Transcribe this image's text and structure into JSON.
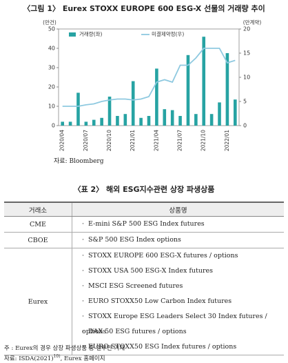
{
  "chart_data": {
    "type": "combo",
    "title": "〈그림 1〉 Eurex STOXX EUROPE 600 ESG-X 선물의 거래량 추이",
    "y_label": "(만건)",
    "y2_label": "(만계약)",
    "categories": [
      "2020/04",
      null,
      null,
      "2020/07",
      null,
      null,
      "2020/10",
      null,
      null,
      "2021/01",
      null,
      null,
      "2021/04",
      null,
      null,
      "2021/07",
      null,
      null,
      "2021/10",
      null,
      null,
      "2022/01",
      null
    ],
    "series": [
      {
        "name": "거래량(좌)",
        "type": "bar",
        "color": "#27a3a3",
        "values": [
          2,
          2,
          17,
          2,
          3,
          4,
          15,
          5,
          6,
          23,
          4,
          5,
          29.5,
          8.5,
          8,
          5,
          36.5,
          6,
          46,
          6,
          12,
          37.5,
          13.5
        ]
      },
      {
        "name": "미결제약정(우)",
        "type": "line",
        "axis": "y2",
        "color": "#8ec9e0",
        "values": [
          4,
          4,
          4,
          4.3,
          4.5,
          5,
          5.3,
          5.5,
          5.5,
          5.3,
          5.5,
          6,
          9,
          9.5,
          9,
          12.5,
          12.5,
          14,
          16,
          16,
          16,
          13,
          13.5
        ]
      }
    ],
    "ylim": [
      0,
      50
    ],
    "yticks": [
      0,
      10,
      20,
      30,
      40,
      50
    ],
    "y2lim": [
      0,
      20
    ],
    "y2ticks": [
      0,
      5,
      10,
      15,
      20
    ]
  },
  "source": "자료: Bloomberg",
  "table": {
    "title": "〈표 2〉 해외 ESG지수관련 상장 파생상품",
    "header": [
      "거래소",
      "상품명"
    ],
    "rows": [
      {
        "exchange": "CME",
        "products": [
          "E-mini S&P 500 ESG Index futures"
        ]
      },
      {
        "exchange": "CBOE",
        "products": [
          "S&P 500 ESG Index options"
        ]
      },
      {
        "exchange": "Eurex",
        "products": [
          "STOXX EUROPE 600 ESG-X futures / options",
          "STOXX USA 500 ESG-X Index futures",
          "MSCI ESG Screened futures",
          "EURO STOXX50 Low Carbon Index futures",
          "STOXX Europe ESG Leaders Select 30 Index futures / options",
          "DAX 50 ESG futures / options",
          "EURO STOXX50 ESG Index futures / options"
        ]
      }
    ]
  },
  "notes": {
    "note": "주 : Eurex의 경우 상장 파생상품 중 일부만 기재",
    "source": "자료: ISDA(2021)",
    "source_sup": "10)",
    "source_tail": ", Eurex 홈페이지"
  }
}
